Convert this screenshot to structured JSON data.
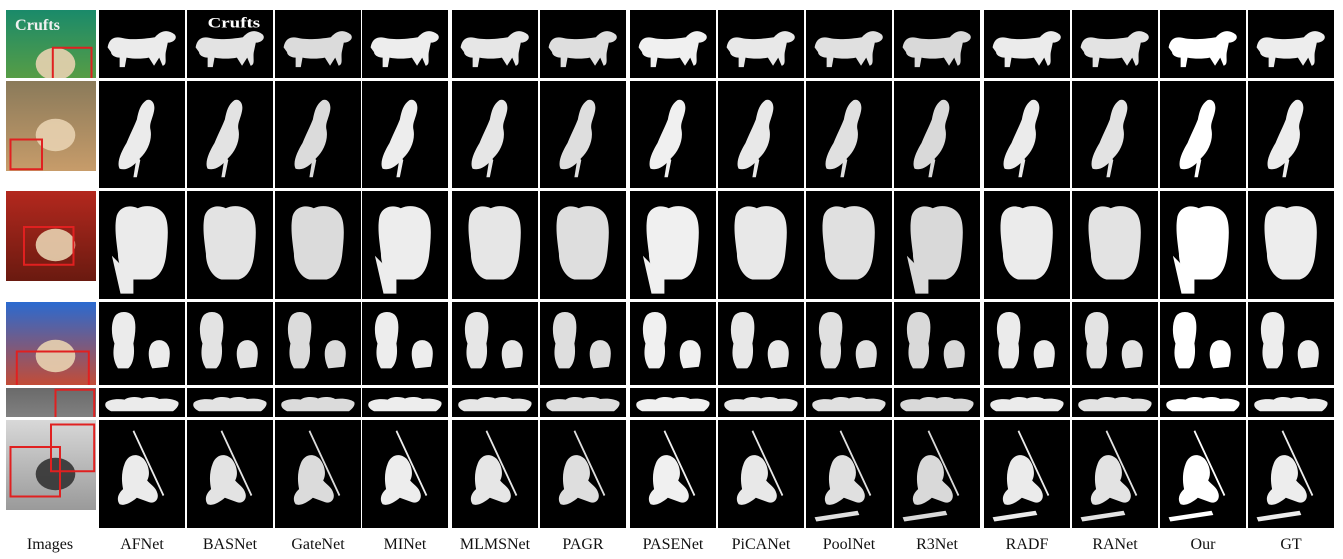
{
  "figure": {
    "column_labels": [
      "Images",
      "AFNet",
      "BASNet",
      "GateNet",
      "MINet",
      "MLMSNet",
      "PAGR",
      "PASENet",
      "PiCANet",
      "PoolNet",
      "R3Net",
      "RADF",
      "RANet",
      "Our",
      "GT"
    ],
    "rows": [
      {
        "subject": "dog",
        "image_text": "Crufts"
      },
      {
        "subject": "bird"
      },
      {
        "subject": "dog-on-chair"
      },
      {
        "subject": "two-dogs"
      },
      {
        "subject": "animals-group"
      },
      {
        "subject": "skier"
      }
    ],
    "colors": {
      "highlight_box": "#e02020",
      "mask_bg": "#000000",
      "mask_fg": "#ffffff"
    }
  }
}
